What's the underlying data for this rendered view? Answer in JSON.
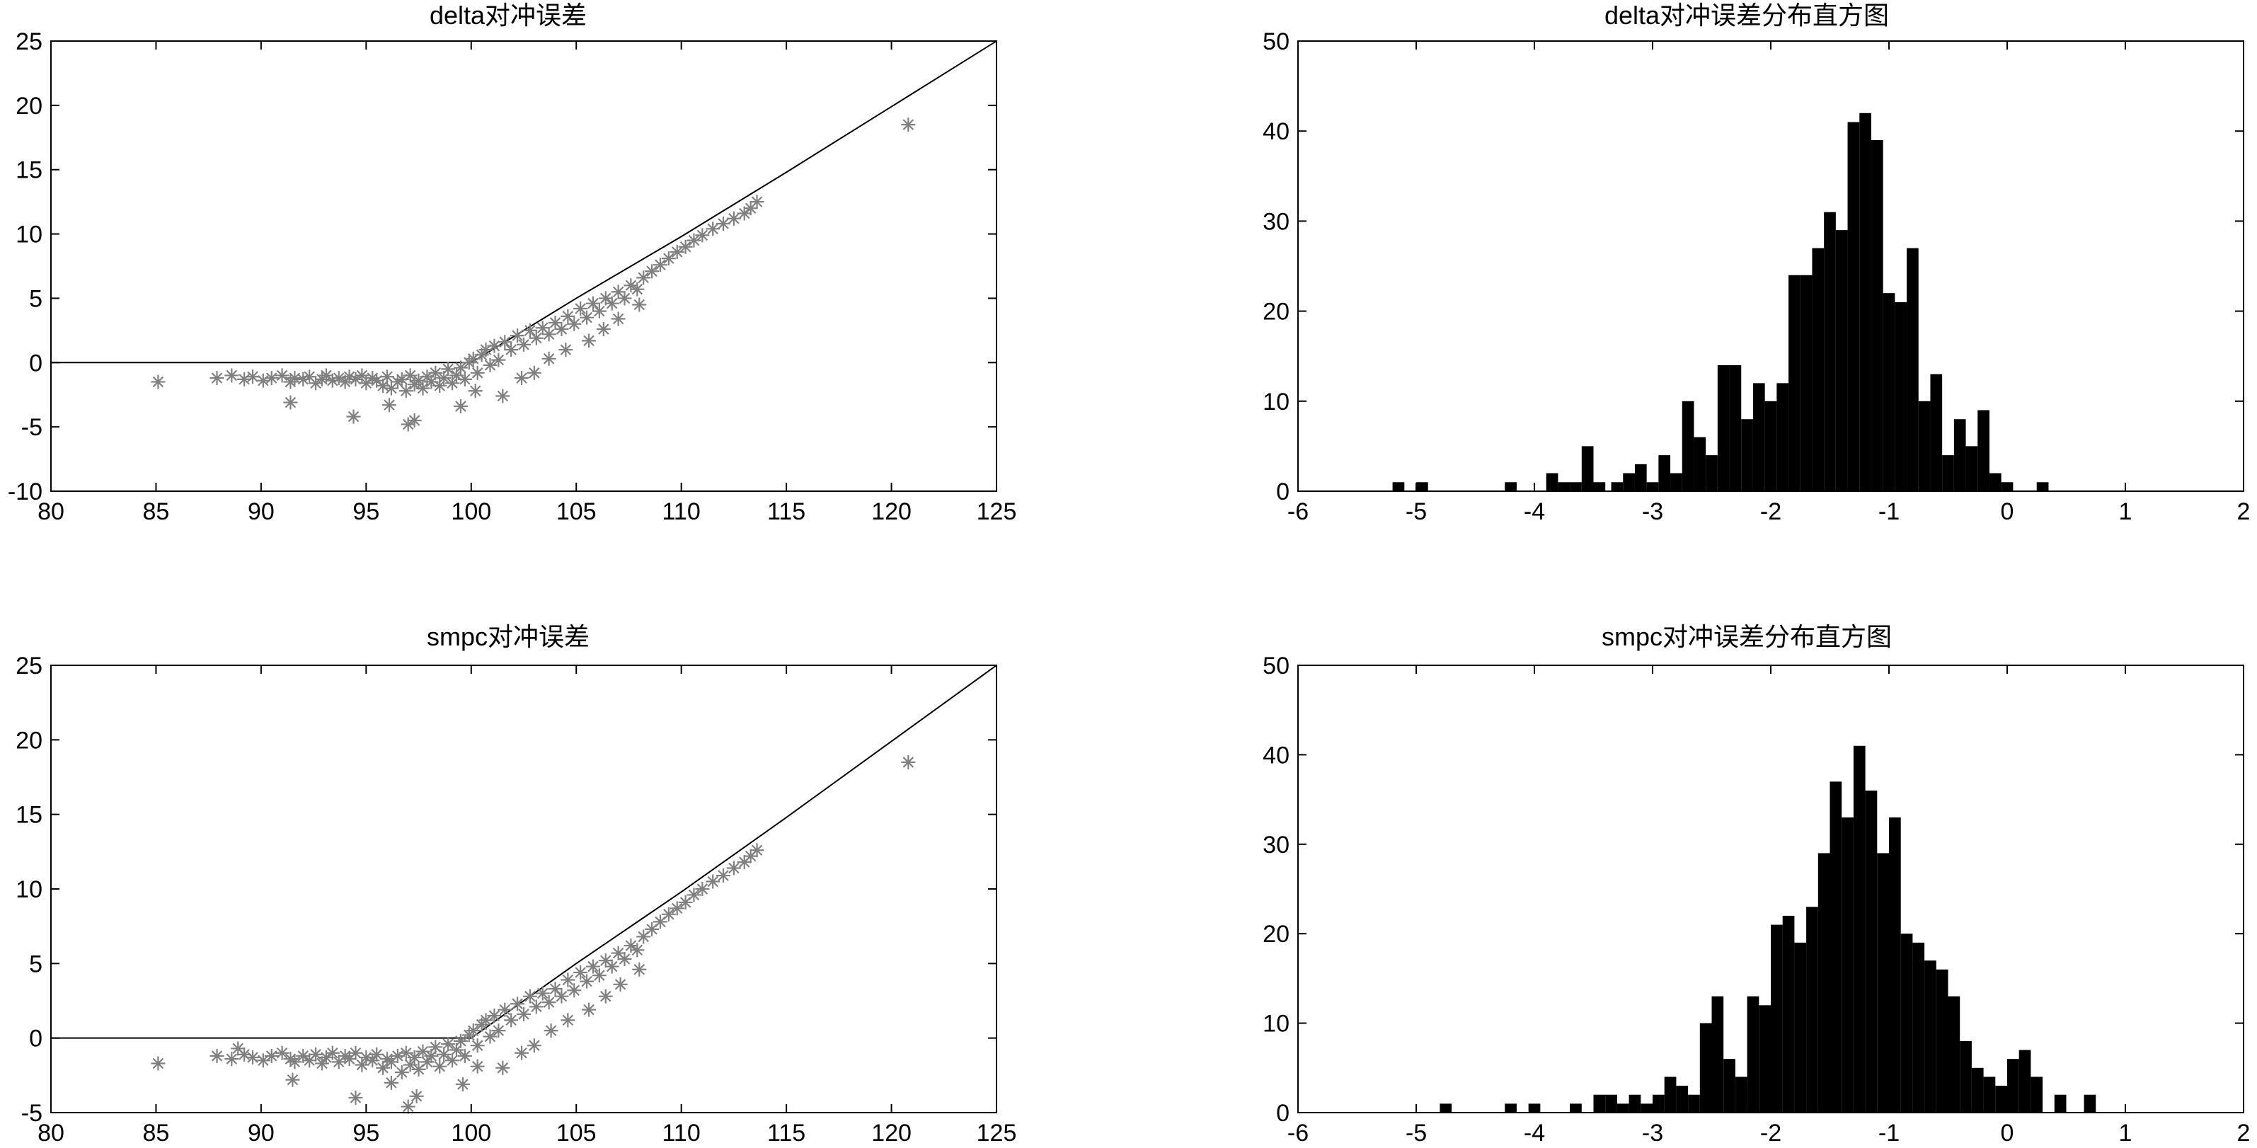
{
  "chart_data": [
    {
      "type": "scatter",
      "title": "delta对冲误差",
      "xlim": [
        80,
        125
      ],
      "ylim": [
        -10,
        25
      ],
      "xticks": [
        80,
        85,
        90,
        95,
        100,
        105,
        110,
        115,
        120,
        125
      ],
      "yticks": [
        -10,
        -5,
        0,
        5,
        10,
        15,
        20,
        25
      ],
      "grid": false,
      "marker_color": "#808080",
      "line_color": "#000000",
      "series": [
        {
          "type": "line",
          "x": [
            80,
            100,
            105,
            110,
            115,
            120,
            125
          ],
          "y": [
            0,
            0,
            5.0,
            9.8,
            14.8,
            19.9,
            25.0
          ]
        },
        {
          "type": "scatter",
          "x": [
            85.1,
            87.9,
            88.6,
            89.2,
            89.6,
            90.1,
            90.5,
            91.0,
            91.4,
            91.6,
            92.0,
            92.3,
            92.6,
            92.9,
            93.1,
            93.4,
            93.7,
            94.0,
            94.2,
            94.5,
            94.8,
            95.0,
            95.3,
            95.5,
            95.8,
            96.0,
            96.2,
            96.5,
            96.7,
            96.9,
            97.1,
            97.3,
            97.5,
            97.7,
            97.9,
            98.1,
            98.3,
            98.5,
            98.7,
            98.9,
            99.1,
            99.3,
            99.5,
            99.7,
            99.9,
            100.1,
            100.3,
            100.5,
            100.7,
            100.9,
            101.1,
            101.3,
            101.6,
            101.9,
            102.2,
            102.5,
            102.8,
            103.1,
            103.4,
            103.7,
            104.0,
            104.3,
            104.6,
            104.9,
            105.2,
            105.5,
            105.8,
            106.1,
            106.4,
            106.7,
            107.0,
            107.3,
            107.6,
            107.9,
            108.2,
            108.6,
            109.0,
            109.4,
            109.8,
            110.2,
            110.6,
            111.0,
            111.5,
            112.0,
            112.5,
            113.0,
            113.3,
            113.6,
            120.8,
            91.4,
            94.4,
            96.1,
            97.0,
            97.3,
            99.5,
            100.2,
            101.5,
            102.4,
            103.0,
            103.7,
            104.5,
            105.6,
            106.3,
            107.0,
            108.0
          ],
          "y": [
            -1.5,
            -1.2,
            -1.0,
            -1.3,
            -1.1,
            -1.4,
            -1.2,
            -1.0,
            -1.5,
            -1.2,
            -1.3,
            -1.1,
            -1.6,
            -1.3,
            -1.0,
            -1.4,
            -1.2,
            -1.5,
            -1.1,
            -1.3,
            -1.0,
            -1.6,
            -1.2,
            -1.4,
            -1.8,
            -1.1,
            -2.0,
            -1.5,
            -1.3,
            -2.2,
            -1.0,
            -1.7,
            -1.4,
            -2.0,
            -1.1,
            -1.5,
            -0.8,
            -1.8,
            -1.2,
            -0.5,
            -1.6,
            -1.0,
            -0.4,
            -1.3,
            0.0,
            0.3,
            -0.8,
            0.6,
            1.0,
            -0.2,
            1.3,
            0.2,
            1.6,
            1.0,
            2.1,
            1.4,
            2.5,
            1.9,
            2.7,
            2.2,
            3.1,
            2.6,
            3.6,
            3.0,
            4.2,
            3.5,
            4.6,
            4.0,
            5.0,
            4.6,
            5.5,
            5.0,
            6.0,
            5.7,
            6.6,
            7.1,
            7.6,
            8.1,
            8.6,
            9.0,
            9.5,
            9.9,
            10.4,
            10.8,
            11.2,
            11.6,
            12.0,
            12.5,
            18.5,
            -3.1,
            -4.2,
            -3.3,
            -4.8,
            -4.5,
            -3.4,
            -2.2,
            -2.6,
            -1.2,
            -0.8,
            0.3,
            1.0,
            1.7,
            2.6,
            3.4,
            4.5
          ]
        }
      ]
    },
    {
      "type": "bar",
      "title": "delta对冲误差分布直方图",
      "xlim": [
        -6,
        2
      ],
      "ylim": [
        0,
        50
      ],
      "xticks": [
        -6,
        -5,
        -4,
        -3,
        -2,
        -1,
        0,
        1,
        2
      ],
      "yticks": [
        0,
        10,
        20,
        30,
        40,
        50
      ],
      "grid": false,
      "bar_color": "#000000",
      "bin_width": 0.1,
      "x": [
        -5.15,
        -4.95,
        -4.2,
        -3.85,
        -3.75,
        -3.65,
        -3.55,
        -3.45,
        -3.3,
        -3.2,
        -3.1,
        -3.0,
        -2.9,
        -2.8,
        -2.7,
        -2.6,
        -2.5,
        -2.4,
        -2.3,
        -2.2,
        -2.1,
        -2.0,
        -1.9,
        -1.8,
        -1.7,
        -1.6,
        -1.5,
        -1.4,
        -1.3,
        -1.2,
        -1.1,
        -1.0,
        -0.9,
        -0.8,
        -0.7,
        -0.6,
        -0.5,
        -0.4,
        -0.3,
        -0.2,
        -0.1,
        0.0,
        0.3
      ],
      "values": [
        1,
        1,
        1,
        2,
        1,
        1,
        5,
        1,
        1,
        2,
        3,
        1,
        4,
        2,
        10,
        6,
        4,
        14,
        14,
        8,
        12,
        10,
        12,
        24,
        24,
        27,
        31,
        29,
        41,
        42,
        39,
        22,
        21,
        27,
        10,
        13,
        4,
        8,
        5,
        9,
        2,
        1,
        1
      ]
    },
    {
      "type": "scatter",
      "title": "smpc对冲误差",
      "xlim": [
        80,
        125
      ],
      "ylim": [
        -5,
        25
      ],
      "xticks": [
        80,
        85,
        90,
        95,
        100,
        105,
        110,
        115,
        120,
        125
      ],
      "yticks": [
        -5,
        0,
        5,
        10,
        15,
        20,
        25
      ],
      "grid": false,
      "marker_color": "#808080",
      "line_color": "#000000",
      "series": [
        {
          "type": "line",
          "x": [
            80,
            100,
            105,
            110,
            115,
            120,
            125
          ],
          "y": [
            0,
            0,
            5.0,
            9.8,
            14.8,
            19.9,
            25.0
          ]
        },
        {
          "type": "scatter",
          "x": [
            85.1,
            87.9,
            88.6,
            89.2,
            89.6,
            90.1,
            90.5,
            91.0,
            91.4,
            91.6,
            92.0,
            92.3,
            92.6,
            92.9,
            93.1,
            93.4,
            93.7,
            94.0,
            94.2,
            94.5,
            94.8,
            95.0,
            95.3,
            95.5,
            95.8,
            96.0,
            96.2,
            96.5,
            96.7,
            96.9,
            97.1,
            97.3,
            97.5,
            97.7,
            97.9,
            98.1,
            98.3,
            98.5,
            98.7,
            98.9,
            99.1,
            99.3,
            99.5,
            99.7,
            99.9,
            100.1,
            100.3,
            100.5,
            100.7,
            100.9,
            101.1,
            101.3,
            101.6,
            101.9,
            102.2,
            102.5,
            102.8,
            103.1,
            103.4,
            103.7,
            104.0,
            104.3,
            104.6,
            104.9,
            105.2,
            105.5,
            105.8,
            106.1,
            106.4,
            106.7,
            107.0,
            107.3,
            107.6,
            107.9,
            108.2,
            108.6,
            109.0,
            109.4,
            109.8,
            110.2,
            110.6,
            111.0,
            111.5,
            112.0,
            112.5,
            113.0,
            113.3,
            113.6,
            120.8,
            91.5,
            94.5,
            96.2,
            97.0,
            97.4,
            99.6,
            100.3,
            101.5,
            102.4,
            103.0,
            103.8,
            104.6,
            105.6,
            106.4,
            107.1,
            108.0,
            88.9
          ],
          "y": [
            -1.7,
            -1.2,
            -1.4,
            -1.1,
            -1.3,
            -1.5,
            -1.2,
            -1.0,
            -1.4,
            -1.6,
            -1.2,
            -1.5,
            -1.1,
            -1.7,
            -1.3,
            -1.0,
            -1.6,
            -1.2,
            -1.4,
            -1.0,
            -1.8,
            -1.3,
            -1.5,
            -1.1,
            -2.0,
            -1.4,
            -1.6,
            -1.2,
            -2.3,
            -1.0,
            -1.8,
            -1.3,
            -2.1,
            -0.9,
            -1.6,
            -1.2,
            -0.6,
            -1.9,
            -1.1,
            -0.4,
            -1.5,
            -0.8,
            -0.2,
            -1.2,
            0.2,
            0.5,
            -0.5,
            0.9,
            1.2,
            0.1,
            1.5,
            0.5,
            1.9,
            1.2,
            2.3,
            1.6,
            2.8,
            2.1,
            3.0,
            2.4,
            3.3,
            2.8,
            3.9,
            3.2,
            4.4,
            3.8,
            4.8,
            4.2,
            5.2,
            4.8,
            5.7,
            5.3,
            6.2,
            5.9,
            6.8,
            7.3,
            7.8,
            8.3,
            8.7,
            9.1,
            9.6,
            10.0,
            10.5,
            10.9,
            11.4,
            11.8,
            12.2,
            12.6,
            18.5,
            -2.8,
            -4.0,
            -3.0,
            -4.6,
            -3.9,
            -3.1,
            -1.9,
            -2.0,
            -1.0,
            -0.5,
            0.5,
            1.2,
            1.9,
            2.8,
            3.6,
            4.6,
            -0.7
          ]
        }
      ]
    },
    {
      "type": "bar",
      "title": "smpc对冲误差分布直方图",
      "xlim": [
        -6,
        2
      ],
      "ylim": [
        0,
        50
      ],
      "xticks": [
        -6,
        -5,
        -4,
        -3,
        -2,
        -1,
        0,
        1,
        2
      ],
      "yticks": [
        0,
        10,
        20,
        30,
        40,
        50
      ],
      "grid": false,
      "bar_color": "#000000",
      "bin_width": 0.1,
      "x": [
        -4.75,
        -4.2,
        -4.0,
        -3.65,
        -3.45,
        -3.35,
        -3.25,
        -3.15,
        -3.05,
        -2.95,
        -2.85,
        -2.75,
        -2.65,
        -2.55,
        -2.45,
        -2.35,
        -2.25,
        -2.15,
        -2.05,
        -1.95,
        -1.85,
        -1.75,
        -1.65,
        -1.55,
        -1.45,
        -1.35,
        -1.25,
        -1.15,
        -1.05,
        -0.95,
        -0.85,
        -0.75,
        -0.65,
        -0.55,
        -0.45,
        -0.35,
        -0.25,
        -0.15,
        -0.05,
        0.05,
        0.15,
        0.25,
        0.45,
        0.7
      ],
      "values": [
        1,
        1,
        1,
        1,
        2,
        2,
        1,
        2,
        1,
        2,
        4,
        3,
        2,
        10,
        13,
        6,
        4,
        13,
        12,
        21,
        22,
        19,
        23,
        29,
        37,
        33,
        41,
        36,
        29,
        33,
        20,
        19,
        17,
        16,
        13,
        8,
        5,
        4,
        3,
        6,
        7,
        4,
        2,
        2
      ]
    }
  ]
}
